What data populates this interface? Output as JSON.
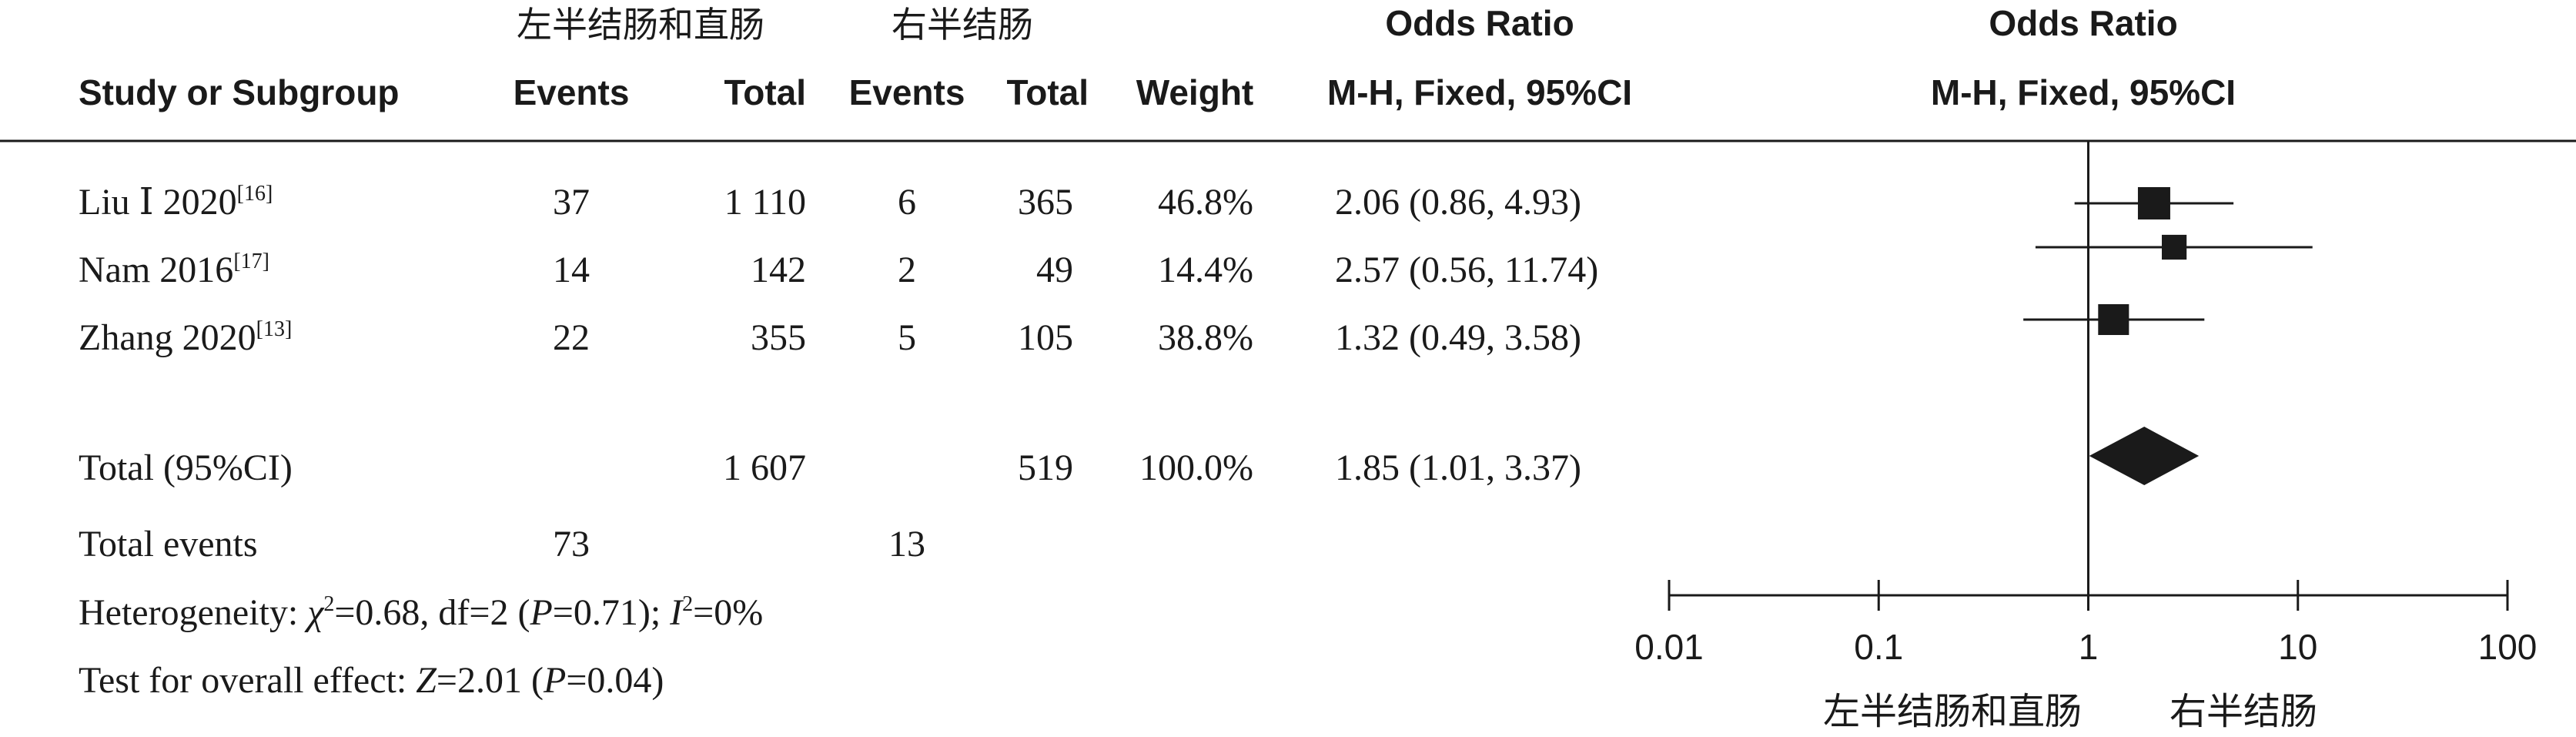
{
  "header": {
    "group1": "左半结肠和直肠",
    "group2": "右半结肠",
    "study_col": "Study or Subgroup",
    "events1": "Events",
    "total1": "Total",
    "events2": "Events",
    "total2": "Total",
    "weight": "Weight",
    "or_title": "Odds Ratio",
    "or_method": "M-H, Fixed, 95%CI",
    "plot_title": "Odds Ratio",
    "plot_method": "M-H, Fixed, 95%CI"
  },
  "studies": [
    {
      "name": "Liu Ⅰ 2020",
      "ref": "[16]",
      "events1": "37",
      "total1": "1 110",
      "events2": "6",
      "total2": "365",
      "weight": "46.8%",
      "ci_text": "2.06 (0.86, 4.93)"
    },
    {
      "name": "Nam 2016",
      "ref": "[17]",
      "events1": "14",
      "total1": "142",
      "events2": "2",
      "total2": "49",
      "weight": "14.4%",
      "ci_text": "2.57 (0.56, 11.74)"
    },
    {
      "name": "Zhang 2020",
      "ref": "[13]",
      "events1": "22",
      "total1": "355",
      "events2": "5",
      "total2": "105",
      "weight": "38.8%",
      "ci_text": "1.32 (0.49, 3.58)"
    }
  ],
  "total_row": {
    "label": "Total (95%CI)",
    "total1": "1 607",
    "total2": "519",
    "weight": "100.0%",
    "ci_text": "1.85 (1.01, 3.37)"
  },
  "events_row": {
    "label": "Total events",
    "events1": "73",
    "events2": "13"
  },
  "heterogeneity": {
    "prefix": "Heterogeneity: ",
    "chi_sym": "χ",
    "chi_exp": "2",
    "chi_val": "=0.68, df=2 (",
    "p_sym": "P",
    "p_val": "=0.71); ",
    "i_sym": "I",
    "i_exp": "2",
    "i_val": "=0%"
  },
  "overall": {
    "prefix": "Test for overall effect: ",
    "z_sym": "Z",
    "z_val": "=2.01 (",
    "p_sym": "P",
    "p_val": "=0.04)"
  },
  "chart_data": {
    "type": "forest",
    "scale": "log",
    "xlim": [
      0.01,
      100
    ],
    "ticks": [
      0.01,
      0.1,
      1,
      10,
      100
    ],
    "tick_labels": [
      "0.01",
      "0.1",
      "1",
      "10",
      "100"
    ],
    "favours_left": "左半结肠和直肠",
    "favours_right": "右半结肠",
    "studies": [
      {
        "or": 2.06,
        "lower": 0.86,
        "upper": 4.93,
        "weight": 46.8
      },
      {
        "or": 2.57,
        "lower": 0.56,
        "upper": 11.74,
        "weight": 14.4
      },
      {
        "or": 1.32,
        "lower": 0.49,
        "upper": 3.58,
        "weight": 38.8
      }
    ],
    "pooled": {
      "or": 1.85,
      "lower": 1.01,
      "upper": 3.37
    }
  }
}
